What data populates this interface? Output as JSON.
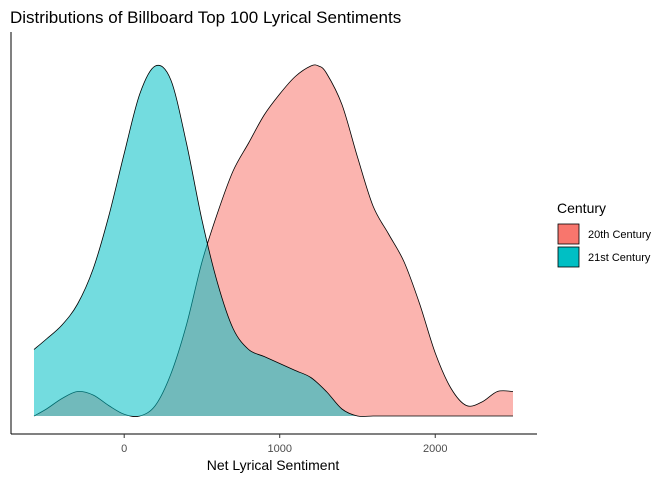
{
  "chart_data": {
    "type": "area",
    "subtype": "density",
    "title": "Distributions of Billboard Top 100 Lyrical Sentiments",
    "xlabel": "Net Lyrical Sentiment",
    "ylabel": "",
    "xlim": [
      -580,
      2500
    ],
    "ylim": [
      0,
      1
    ],
    "x_ticks": [
      {
        "value": 0,
        "label": "0"
      },
      {
        "value": 1000,
        "label": "1000"
      },
      {
        "value": 2000,
        "label": "2000"
      }
    ],
    "grid": false,
    "legend": {
      "title": "Century",
      "position": "right"
    },
    "series": [
      {
        "name": "20th Century",
        "color": "#F8766D",
        "opacity": 0.55,
        "x": [
          -580,
          -500,
          -400,
          -300,
          -200,
          -100,
          0,
          100,
          200,
          300,
          400,
          500,
          600,
          700,
          800,
          900,
          1000,
          1100,
          1200,
          1250,
          1300,
          1400,
          1500,
          1600,
          1700,
          1800,
          1900,
          2000,
          2100,
          2200,
          2300,
          2400,
          2500
        ],
        "y": [
          0.0,
          0.02,
          0.05,
          0.07,
          0.06,
          0.03,
          0.005,
          0.0,
          0.03,
          0.12,
          0.26,
          0.44,
          0.58,
          0.7,
          0.78,
          0.86,
          0.92,
          0.97,
          1.0,
          1.0,
          0.98,
          0.89,
          0.74,
          0.6,
          0.52,
          0.44,
          0.32,
          0.18,
          0.08,
          0.03,
          0.04,
          0.07,
          0.07
        ]
      },
      {
        "name": "21st Century",
        "color": "#00BFC4",
        "opacity": 0.55,
        "x": [
          -580,
          -500,
          -400,
          -300,
          -200,
          -100,
          0,
          100,
          200,
          300,
          400,
          500,
          600,
          700,
          800,
          900,
          1000,
          1100,
          1200,
          1300,
          1400,
          1500,
          1600,
          1700,
          1800,
          1900,
          2000,
          2100,
          2200,
          2300,
          2400,
          2500
        ],
        "y": [
          0.19,
          0.22,
          0.26,
          0.32,
          0.42,
          0.57,
          0.75,
          0.92,
          1.0,
          0.96,
          0.78,
          0.56,
          0.38,
          0.25,
          0.19,
          0.17,
          0.15,
          0.13,
          0.11,
          0.07,
          0.02,
          0.0,
          0.0,
          0.0,
          0.0,
          0.0,
          0.0,
          0.0,
          0.0,
          0.0,
          0.0,
          0.0
        ]
      }
    ]
  }
}
